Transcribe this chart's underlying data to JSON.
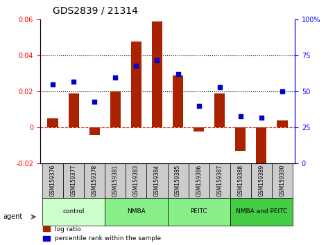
{
  "title": "GDS2839 / 21314",
  "samples": [
    "GSM159376",
    "GSM159377",
    "GSM159378",
    "GSM159381",
    "GSM159383",
    "GSM159384",
    "GSM159385",
    "GSM159386",
    "GSM159387",
    "GSM159388",
    "GSM159389",
    "GSM159390"
  ],
  "log_ratio": [
    0.005,
    0.019,
    -0.004,
    0.02,
    0.048,
    0.059,
    0.029,
    -0.002,
    0.019,
    -0.013,
    -0.022,
    0.004
  ],
  "percentile_rank": [
    55,
    57,
    43,
    60,
    68,
    72,
    62,
    40,
    53,
    33,
    32,
    50
  ],
  "ylim_left": [
    -0.02,
    0.06
  ],
  "ylim_right": [
    0,
    100
  ],
  "yticks_left": [
    -0.02,
    0.0,
    0.02,
    0.04,
    0.06
  ],
  "yticks_right": [
    0,
    25,
    50,
    75,
    100
  ],
  "hlines": [
    0.02,
    0.04
  ],
  "bar_color": "#aa2200",
  "dot_color": "#0000cc",
  "zero_line_color": "#cc2200",
  "dotted_line_color": "#000000",
  "groups": [
    {
      "label": "control",
      "start": 0,
      "end": 3,
      "color": "#ccffcc"
    },
    {
      "label": "NMBA",
      "start": 3,
      "end": 6,
      "color": "#88ee88"
    },
    {
      "label": "PEITC",
      "start": 6,
      "end": 9,
      "color": "#88ee88"
    },
    {
      "label": "NMBA and PEITC",
      "start": 9,
      "end": 12,
      "color": "#44cc44"
    }
  ],
  "agent_label": "agent",
  "legend_bar_label": "log ratio",
  "legend_dot_label": "percentile rank within the sample",
  "bar_width": 0.5
}
